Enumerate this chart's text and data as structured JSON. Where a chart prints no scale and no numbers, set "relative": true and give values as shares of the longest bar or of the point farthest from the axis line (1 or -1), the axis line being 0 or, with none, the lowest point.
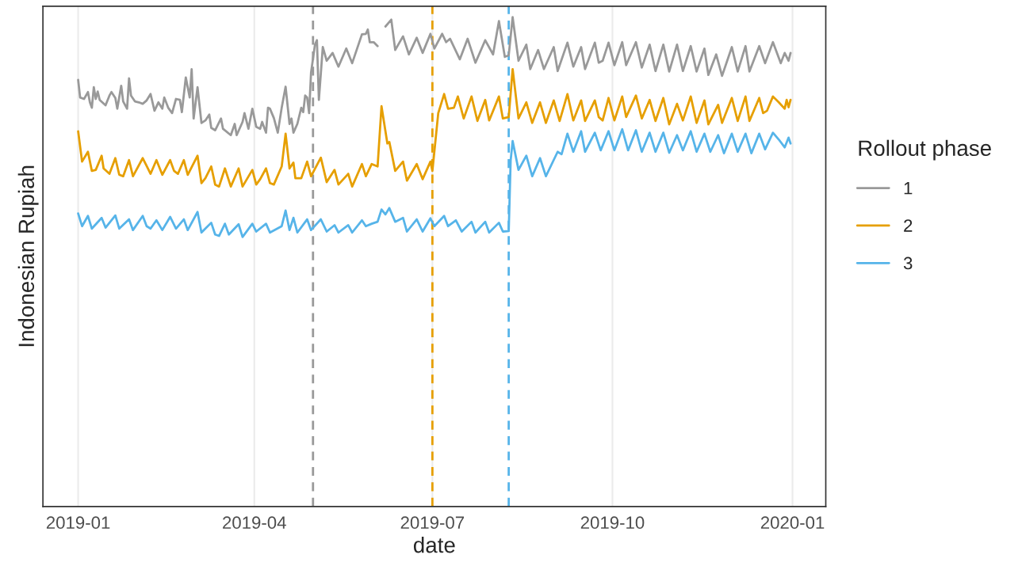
{
  "chart_data": {
    "type": "line",
    "xlabel": "date",
    "ylabel": "Indonesian Rupiah",
    "legend_title": "Rollout phase",
    "relative": true,
    "grid": "x",
    "legend": "right",
    "line_style": "solid",
    "marker": "none",
    "xlim": [
      "2018-12-14",
      "2020-01-18"
    ],
    "xticks": [
      {
        "value": "2019-01-01",
        "label": "2019-01"
      },
      {
        "value": "2019-04-01",
        "label": "2019-04"
      },
      {
        "value": "2019-07-01",
        "label": "2019-07"
      },
      {
        "value": "2019-10-01",
        "label": "2019-10"
      },
      {
        "value": "2020-01-01",
        "label": "2020-01"
      }
    ],
    "ref_lines": [
      {
        "axis": "x",
        "value": "2019-05-01",
        "color": "#999999",
        "line_style": "dashed"
      },
      {
        "axis": "x",
        "value": "2019-07-01",
        "color": "#e69f00",
        "line_style": "dashed"
      },
      {
        "axis": "x",
        "value": "2019-08-09",
        "color": "#56b4e9",
        "line_style": "dashed"
      }
    ],
    "series": [
      {
        "name": "1",
        "color": "#999999",
        "x": [
          "2019-01-01",
          "2019-01-02",
          "2019-01-04",
          "2019-01-06",
          "2019-01-07",
          "2019-01-08",
          "2019-01-09",
          "2019-01-10",
          "2019-01-11",
          "2019-01-12",
          "2019-01-15",
          "2019-01-17",
          "2019-01-18",
          "2019-01-20",
          "2019-01-21",
          "2019-01-23",
          "2019-01-24",
          "2019-01-26",
          "2019-01-27",
          "2019-01-28",
          "2019-01-30",
          "2019-02-01",
          "2019-02-03",
          "2019-02-05",
          "2019-02-07",
          "2019-02-09",
          "2019-02-11",
          "2019-02-13",
          "2019-02-14",
          "2019-02-16",
          "2019-02-18",
          "2019-02-20",
          "2019-02-22",
          "2019-02-23",
          "2019-02-25",
          "2019-02-27",
          "2019-02-28",
          "2019-03-01",
          "2019-03-03",
          "2019-03-05",
          "2019-03-07",
          "2019-03-09",
          "2019-03-10",
          "2019-03-12",
          "2019-03-15",
          "2019-03-16",
          "2019-03-20",
          "2019-03-22",
          "2019-03-23",
          "2019-03-26",
          "2019-03-27",
          "2019-03-29",
          "2019-03-31",
          "2019-04-02",
          "2019-04-04",
          "2019-04-05",
          "2019-04-07",
          "2019-04-08",
          "2019-04-09",
          "2019-04-11",
          "2019-04-13",
          "2019-04-15",
          "2019-04-17",
          "2019-04-19",
          "2019-04-20",
          "2019-04-21",
          "2019-04-23",
          "2019-04-25",
          "2019-04-26",
          "2019-04-27",
          "2019-04-28",
          "2019-04-29",
          "2019-04-30",
          "2019-05-02",
          "2019-05-03",
          "2019-05-04",
          "2019-05-06",
          "2019-05-08",
          "2019-05-11",
          "2019-05-14",
          "2019-05-18",
          "2019-05-21",
          "2019-05-26",
          "2019-05-28",
          "2019-05-29",
          "2019-05-30",
          "2019-06-01",
          "2019-06-03",
          "2019-06-05",
          "2019-06-07",
          "2019-06-10",
          "2019-06-12",
          "2019-06-16",
          "2019-06-19",
          "2019-06-23",
          "2019-06-26",
          "2019-06-30",
          "2019-07-02",
          "2019-07-06",
          "2019-07-08",
          "2019-07-10",
          "2019-07-15",
          "2019-07-19",
          "2019-07-23",
          "2019-07-28",
          "2019-08-01",
          "2019-08-04",
          "2019-08-07",
          "2019-08-09",
          "2019-08-11",
          "2019-08-14",
          "2019-08-18",
          "2019-08-20",
          "2019-08-24",
          "2019-08-27",
          "2019-09-01",
          "2019-09-03",
          "2019-09-08",
          "2019-09-11",
          "2019-09-15",
          "2019-09-17",
          "2019-09-22",
          "2019-09-24",
          "2019-09-26",
          "2019-09-29",
          "2019-10-02",
          "2019-10-06",
          "2019-10-08",
          "2019-10-13",
          "2019-10-16",
          "2019-10-20",
          "2019-10-23",
          "2019-10-27",
          "2019-10-30",
          "2019-11-03",
          "2019-11-06",
          "2019-11-10",
          "2019-11-13",
          "2019-11-17",
          "2019-11-19",
          "2019-11-23",
          "2019-11-26",
          "2019-12-01",
          "2019-12-04",
          "2019-12-08",
          "2019-12-10",
          "2019-12-15",
          "2019-12-18",
          "2019-12-22",
          "2019-12-26",
          "2019-12-28",
          "2019-12-30",
          "2019-12-31"
        ],
        "values": [
          0.872,
          0.836,
          0.833,
          0.847,
          0.826,
          0.815,
          0.857,
          0.833,
          0.848,
          0.831,
          0.82,
          0.84,
          0.847,
          0.835,
          0.813,
          0.86,
          0.828,
          0.813,
          0.875,
          0.84,
          0.828,
          0.826,
          0.823,
          0.83,
          0.843,
          0.809,
          0.826,
          0.813,
          0.836,
          0.815,
          0.804,
          0.833,
          0.831,
          0.806,
          0.877,
          0.836,
          0.894,
          0.793,
          0.857,
          0.784,
          0.789,
          0.801,
          0.774,
          0.769,
          0.793,
          0.772,
          0.759,
          0.782,
          0.759,
          0.786,
          0.804,
          0.772,
          0.813,
          0.776,
          0.772,
          0.786,
          0.764,
          0.815,
          0.813,
          0.794,
          0.764,
          0.815,
          0.858,
          0.782,
          0.793,
          0.764,
          0.782,
          0.815,
          0.806,
          0.84,
          0.836,
          0.804,
          0.887,
          0.944,
          0.953,
          0.831,
          0.939,
          0.911,
          0.927,
          0.899,
          0.936,
          0.906,
          0.965,
          0.966,
          0.975,
          0.949,
          0.949,
          0.941,
          null,
          0.981,
          0.995,
          0.933,
          0.961,
          0.924,
          0.958,
          0.927,
          0.966,
          0.936,
          0.966,
          0.949,
          0.956,
          0.914,
          0.956,
          0.907,
          0.953,
          0.924,
          0.992,
          0.919,
          0.922,
          1.0,
          0.911,
          0.944,
          0.894,
          0.933,
          0.894,
          0.939,
          0.89,
          0.948,
          0.899,
          0.939,
          0.894,
          0.948,
          0.907,
          0.911,
          0.948,
          0.902,
          0.949,
          0.902,
          0.949,
          0.897,
          0.944,
          0.89,
          0.944,
          0.889,
          0.944,
          0.89,
          0.941,
          0.889,
          0.936,
          0.882,
          0.924,
          0.88,
          0.939,
          0.889,
          0.941,
          0.889,
          0.941,
          0.906,
          0.949,
          0.906,
          0.927,
          0.911,
          0.927
        ]
      },
      {
        "name": "2",
        "color": "#e69f00",
        "x": [
          "2019-01-01",
          "2019-01-03",
          "2019-01-06",
          "2019-01-08",
          "2019-01-10",
          "2019-01-13",
          "2019-01-14",
          "2019-01-17",
          "2019-01-20",
          "2019-01-22",
          "2019-01-24",
          "2019-01-27",
          "2019-01-29",
          "2019-02-03",
          "2019-02-05",
          "2019-02-07",
          "2019-02-10",
          "2019-02-13",
          "2019-02-17",
          "2019-02-19",
          "2019-02-21",
          "2019-02-24",
          "2019-02-26",
          "2019-03-03",
          "2019-03-05",
          "2019-03-07",
          "2019-03-10",
          "2019-03-12",
          "2019-03-14",
          "2019-03-17",
          "2019-03-20",
          "2019-03-24",
          "2019-03-26",
          "2019-03-31",
          "2019-04-02",
          "2019-04-04",
          "2019-04-07",
          "2019-04-09",
          "2019-04-11",
          "2019-04-15",
          "2019-04-17",
          "2019-04-19",
          "2019-04-21",
          "2019-04-22",
          "2019-04-25",
          "2019-04-28",
          "2019-04-30",
          "2019-05-05",
          "2019-05-08",
          "2019-05-12",
          "2019-05-14",
          "2019-05-19",
          "2019-05-21",
          "2019-05-26",
          "2019-05-28",
          "2019-05-31",
          "2019-06-03",
          "2019-06-05",
          "2019-06-08",
          "2019-06-09",
          "2019-06-12",
          "2019-06-16",
          "2019-06-18",
          "2019-06-23",
          "2019-06-26",
          "2019-06-30",
          "2019-07-01",
          "2019-07-04",
          "2019-07-07",
          "2019-07-09",
          "2019-07-12",
          "2019-07-14",
          "2019-07-17",
          "2019-07-21",
          "2019-07-24",
          "2019-07-28",
          "2019-07-30",
          "2019-08-04",
          "2019-08-06",
          "2019-08-09",
          "2019-08-11",
          "2019-08-14",
          "2019-08-18",
          "2019-08-21",
          "2019-08-25",
          "2019-08-28",
          "2019-09-01",
          "2019-09-04",
          "2019-09-08",
          "2019-09-11",
          "2019-09-15",
          "2019-09-17",
          "2019-09-22",
          "2019-09-24",
          "2019-09-26",
          "2019-09-29",
          "2019-10-02",
          "2019-10-06",
          "2019-10-08",
          "2019-10-13",
          "2019-10-16",
          "2019-10-20",
          "2019-10-23",
          "2019-10-27",
          "2019-10-30",
          "2019-11-03",
          "2019-11-06",
          "2019-11-10",
          "2019-11-13",
          "2019-11-17",
          "2019-11-19",
          "2019-11-24",
          "2019-11-26",
          "2019-12-01",
          "2019-12-04",
          "2019-12-08",
          "2019-12-10",
          "2019-12-15",
          "2019-12-17",
          "2019-12-19",
          "2019-12-22",
          "2019-12-25",
          "2019-12-28",
          "2019-12-29",
          "2019-12-30",
          "2019-12-31"
        ],
        "values": [
          0.767,
          0.705,
          0.725,
          0.686,
          0.688,
          0.717,
          0.691,
          0.68,
          0.712,
          0.678,
          0.675,
          0.708,
          0.675,
          0.712,
          0.696,
          0.68,
          0.708,
          0.678,
          0.708,
          0.686,
          0.68,
          0.708,
          0.678,
          0.717,
          0.661,
          0.671,
          0.695,
          0.658,
          0.654,
          0.691,
          0.654,
          0.691,
          0.654,
          0.688,
          0.658,
          0.669,
          0.691,
          0.661,
          0.658,
          0.695,
          0.762,
          0.691,
          0.703,
          0.671,
          0.671,
          0.705,
          0.675,
          0.713,
          0.663,
          0.688,
          0.658,
          0.68,
          0.654,
          0.7,
          0.675,
          0.7,
          0.695,
          0.818,
          0.742,
          0.745,
          0.686,
          0.705,
          0.666,
          0.7,
          0.669,
          0.705,
          0.686,
          0.804,
          0.843,
          0.813,
          0.815,
          0.838,
          0.793,
          0.838,
          0.788,
          0.831,
          0.789,
          0.838,
          0.793,
          0.796,
          0.894,
          0.793,
          0.826,
          0.784,
          0.826,
          0.784,
          0.83,
          0.788,
          0.843,
          0.789,
          0.83,
          0.788,
          0.83,
          0.796,
          0.789,
          0.835,
          0.789,
          0.838,
          0.796,
          0.84,
          0.793,
          0.831,
          0.788,
          0.835,
          0.781,
          0.823,
          0.789,
          0.838,
          0.784,
          0.83,
          0.781,
          0.821,
          0.784,
          0.835,
          0.788,
          0.838,
          0.788,
          0.835,
          0.804,
          0.809,
          0.838,
          0.826,
          0.813,
          0.831,
          0.816,
          0.831
        ]
      },
      {
        "name": "3",
        "color": "#56b4e9",
        "x": [
          "2019-01-01",
          "2019-01-03",
          "2019-01-06",
          "2019-01-08",
          "2019-01-13",
          "2019-01-15",
          "2019-01-20",
          "2019-01-22",
          "2019-01-27",
          "2019-01-29",
          "2019-02-03",
          "2019-02-05",
          "2019-02-07",
          "2019-02-10",
          "2019-02-13",
          "2019-02-17",
          "2019-02-20",
          "2019-02-24",
          "2019-02-26",
          "2019-03-03",
          "2019-03-05",
          "2019-03-07",
          "2019-03-10",
          "2019-03-12",
          "2019-03-14",
          "2019-03-17",
          "2019-03-19",
          "2019-03-24",
          "2019-03-26",
          "2019-03-31",
          "2019-04-02",
          "2019-04-07",
          "2019-04-09",
          "2019-04-15",
          "2019-04-17",
          "2019-04-19",
          "2019-04-21",
          "2019-04-23",
          "2019-04-28",
          "2019-04-30",
          "2019-05-05",
          "2019-05-08",
          "2019-05-12",
          "2019-05-14",
          "2019-05-19",
          "2019-05-21",
          "2019-05-26",
          "2019-05-28",
          "2019-05-31",
          "2019-06-03",
          "2019-06-05",
          "2019-06-07",
          "2019-06-09",
          "2019-06-12",
          "2019-06-16",
          "2019-06-18",
          "2019-06-23",
          "2019-06-26",
          "2019-06-30",
          "2019-07-02",
          "2019-07-07",
          "2019-07-09",
          "2019-07-13",
          "2019-07-16",
          "2019-07-21",
          "2019-07-23",
          "2019-07-28",
          "2019-07-30",
          "2019-08-04",
          "2019-08-06",
          "2019-08-09",
          "2019-08-10",
          "2019-08-11",
          "2019-08-14",
          "2019-08-18",
          "2019-08-21",
          "2019-08-25",
          "2019-08-28",
          "2019-09-03",
          "2019-09-05",
          "2019-09-08",
          "2019-09-11",
          "2019-09-15",
          "2019-09-17",
          "2019-09-22",
          "2019-09-25",
          "2019-09-29",
          "2019-10-02",
          "2019-10-06",
          "2019-10-09",
          "2019-10-13",
          "2019-10-16",
          "2019-10-20",
          "2019-10-23",
          "2019-10-27",
          "2019-10-30",
          "2019-11-03",
          "2019-11-06",
          "2019-11-10",
          "2019-11-13",
          "2019-11-17",
          "2019-11-20",
          "2019-11-24",
          "2019-11-27",
          "2019-12-01",
          "2019-12-04",
          "2019-12-08",
          "2019-12-11",
          "2019-12-15",
          "2019-12-18",
          "2019-12-22",
          "2019-12-25",
          "2019-12-28",
          "2019-12-30",
          "2019-12-31"
        ],
        "values": [
          0.599,
          0.573,
          0.594,
          0.568,
          0.59,
          0.57,
          0.595,
          0.568,
          0.587,
          0.565,
          0.594,
          0.573,
          0.568,
          0.585,
          0.565,
          0.592,
          0.568,
          0.587,
          0.565,
          0.602,
          0.56,
          0.568,
          0.58,
          0.556,
          0.553,
          0.578,
          0.556,
          0.577,
          0.551,
          0.578,
          0.562,
          0.578,
          0.56,
          0.573,
          0.605,
          0.565,
          0.59,
          0.56,
          0.587,
          0.565,
          0.587,
          0.562,
          0.575,
          0.56,
          0.575,
          0.56,
          0.585,
          0.573,
          0.578,
          0.582,
          0.607,
          0.597,
          0.61,
          0.582,
          0.59,
          0.562,
          0.587,
          0.562,
          0.589,
          0.573,
          0.594,
          0.573,
          0.585,
          0.562,
          0.582,
          0.56,
          0.582,
          0.56,
          0.58,
          0.562,
          0.563,
          0.708,
          0.747,
          0.688,
          0.717,
          0.675,
          0.712,
          0.675,
          0.725,
          0.72,
          0.762,
          0.725,
          0.767,
          0.725,
          0.764,
          0.728,
          0.767,
          0.728,
          0.771,
          0.728,
          0.769,
          0.725,
          0.764,
          0.725,
          0.764,
          0.723,
          0.759,
          0.728,
          0.767,
          0.725,
          0.762,
          0.725,
          0.759,
          0.722,
          0.762,
          0.725,
          0.762,
          0.722,
          0.762,
          0.73,
          0.764,
          0.75,
          0.734,
          0.754,
          0.742
        ]
      }
    ]
  }
}
